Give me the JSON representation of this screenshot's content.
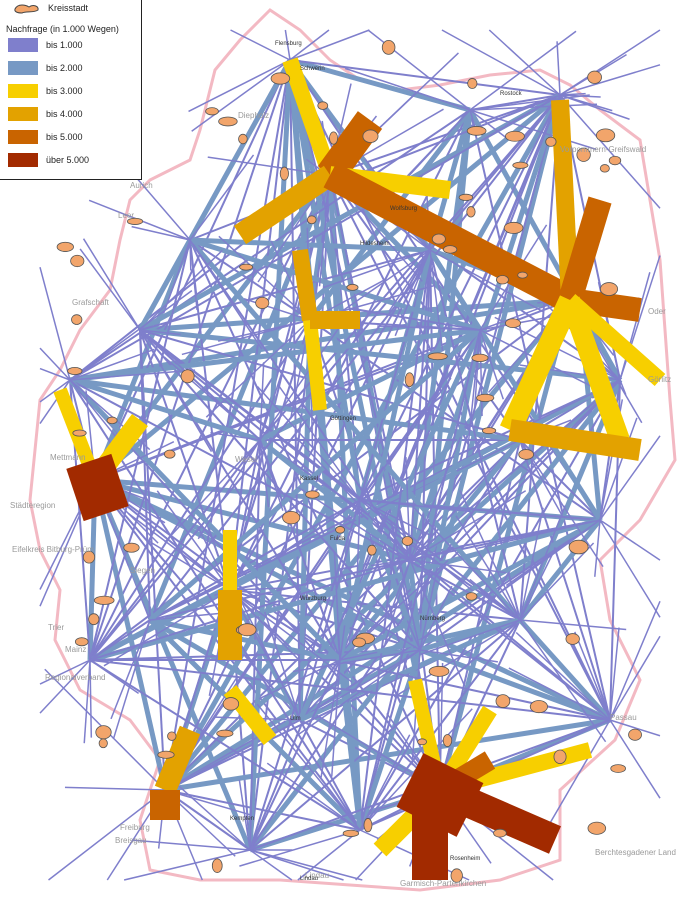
{
  "legend": {
    "city_label": "Kreisstadt",
    "title": "Nachfrage (in 1.000 Wegen)",
    "classes": [
      {
        "label": "bis 1.000",
        "color": "#7f7fcc"
      },
      {
        "label": "bis 2.000",
        "color": "#7799c4"
      },
      {
        "label": "bis 3.000",
        "color": "#f7cf00"
      },
      {
        "label": "bis 4.000",
        "color": "#e3a200"
      },
      {
        "label": "bis 5.000",
        "color": "#c96400"
      },
      {
        "label": "über 5.000",
        "color": "#a22a00"
      }
    ],
    "city_color": "#f2a56b",
    "boundary_color": "#f3b9c3"
  },
  "map_labels": [
    "Grafschaft",
    "Aurich",
    "Leer",
    "Diepholz",
    "Vorpommern-Greifswald",
    "Eifelkreis Bitburg-Prüm",
    "Trier",
    "Regionalverband",
    "Freiburg",
    "Breisgau",
    "Lindau",
    "Garmisch-Partenkirchen",
    "Berchtesgadener Land",
    "Passau",
    "Oder",
    "Görlitz",
    "Städteregion",
    "Mettmann",
    "Siegen",
    "Mainz",
    "Wesel"
  ],
  "city_labels": [
    "Flensburg",
    "Schwerin",
    "Rostock",
    "Hildesheim",
    "Göttingen",
    "Wolfsburg",
    "Kassel",
    "Fulda",
    "Würzburg",
    "Nürnberg",
    "Ulm",
    "Kempten",
    "Lindau",
    "Rosenheim"
  ]
}
